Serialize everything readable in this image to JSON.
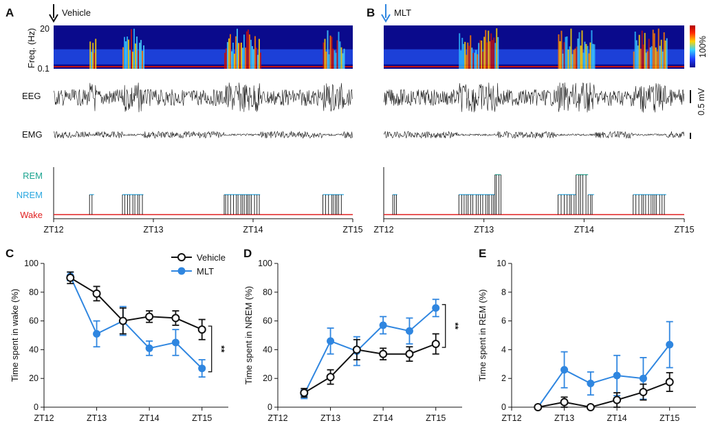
{
  "panels": {
    "A": {
      "label": "A",
      "arrow_label": "Vehicle",
      "spec_ylabel": "Freq. (Hz)",
      "spec_ytop": "20",
      "spec_ybottom": "0.1",
      "eeg_label": "EEG",
      "emg_label": "EMG",
      "states": [
        "REM",
        "NREM",
        "Wake"
      ],
      "zt_ticks": [
        "ZT12",
        "ZT13",
        "ZT14",
        "ZT15"
      ]
    },
    "B": {
      "label": "B",
      "arrow_label": "MLT",
      "colorbar_label": "100%",
      "scale_label": "0.5 mV",
      "zt_ticks": [
        "ZT12",
        "ZT13",
        "ZT14",
        "ZT15"
      ]
    }
  },
  "legend": {
    "vehicle": "Vehicle",
    "mlt": "MLT"
  },
  "colors": {
    "vehicle": "#111111",
    "mlt": "#2f86e0",
    "rem": "#1aa38f",
    "nrem": "#2aa7e0",
    "wake": "#e02020"
  },
  "hypnogram_A": [
    [
      0,
      0
    ],
    [
      0.12,
      1
    ],
    [
      0.135,
      0
    ],
    [
      0.23,
      1
    ],
    [
      0.3,
      0
    ],
    [
      0.57,
      1
    ],
    [
      0.69,
      0
    ],
    [
      0.9,
      1
    ],
    [
      0.97,
      0
    ]
  ],
  "hypnogram_B": [
    [
      0,
      0
    ],
    [
      0.03,
      1
    ],
    [
      0.045,
      0
    ],
    [
      0.25,
      1
    ],
    [
      0.37,
      2
    ],
    [
      0.39,
      0
    ],
    [
      0.58,
      1
    ],
    [
      0.64,
      2
    ],
    [
      0.68,
      1
    ],
    [
      0.7,
      0
    ],
    [
      0.83,
      1
    ],
    [
      0.94,
      0
    ]
  ],
  "significance": {
    "C": "**",
    "D": "**"
  },
  "chart_data": [
    {
      "panel": "C",
      "type": "line",
      "ylabel": "Time spent in wake (%)",
      "ylim": [
        0,
        100
      ],
      "yticks": [
        "0",
        "20",
        "40",
        "60",
        "80",
        "100"
      ],
      "xticks": [
        "ZT12",
        "ZT13",
        "ZT14",
        "ZT15"
      ],
      "x": [
        0.5,
        1.0,
        1.5,
        2.0,
        2.5,
        3.0
      ],
      "series": [
        {
          "name": "Vehicle",
          "values": [
            90,
            79,
            60,
            63,
            62,
            54
          ],
          "errors": [
            4,
            5,
            9,
            4,
            5,
            7
          ]
        },
        {
          "name": "MLT",
          "values": [
            91,
            51,
            60,
            41,
            45,
            27
          ],
          "errors": [
            3,
            9,
            10,
            5,
            9,
            6
          ]
        }
      ]
    },
    {
      "panel": "D",
      "type": "line",
      "ylabel": "Time spent in NREM (%)",
      "ylim": [
        0,
        100
      ],
      "yticks": [
        "0",
        "20",
        "40",
        "60",
        "80",
        "100"
      ],
      "xticks": [
        "ZT12",
        "ZT13",
        "ZT14",
        "ZT15"
      ],
      "x": [
        0.5,
        1.0,
        1.5,
        2.0,
        2.5,
        3.0
      ],
      "series": [
        {
          "name": "Vehicle",
          "values": [
            10,
            21,
            40,
            37,
            37,
            44
          ],
          "errors": [
            3,
            5,
            7,
            4,
            5,
            7
          ]
        },
        {
          "name": "MLT",
          "values": [
            9,
            46,
            39,
            57,
            53,
            69
          ],
          "errors": [
            3,
            9,
            10,
            6,
            9,
            6
          ]
        }
      ]
    },
    {
      "panel": "E",
      "type": "line",
      "ylabel": "Time spent in REM (%)",
      "ylim": [
        0,
        10
      ],
      "yticks": [
        "0",
        "2",
        "4",
        "6",
        "8",
        "10"
      ],
      "xticks": [
        "ZT12",
        "ZT13",
        "ZT14",
        "ZT15"
      ],
      "x": [
        0.5,
        1.0,
        1.5,
        2.0,
        2.5,
        3.0
      ],
      "series": [
        {
          "name": "Vehicle",
          "values": [
            0,
            0.35,
            0,
            0.5,
            1.05,
            1.75
          ],
          "errors": [
            0,
            0.35,
            0,
            0.5,
            0.55,
            0.65
          ]
        },
        {
          "name": "MLT",
          "values": [
            0,
            2.6,
            1.65,
            2.2,
            2.0,
            4.35
          ],
          "errors": [
            0,
            1.25,
            0.8,
            1.4,
            1.45,
            1.6
          ]
        }
      ]
    }
  ]
}
